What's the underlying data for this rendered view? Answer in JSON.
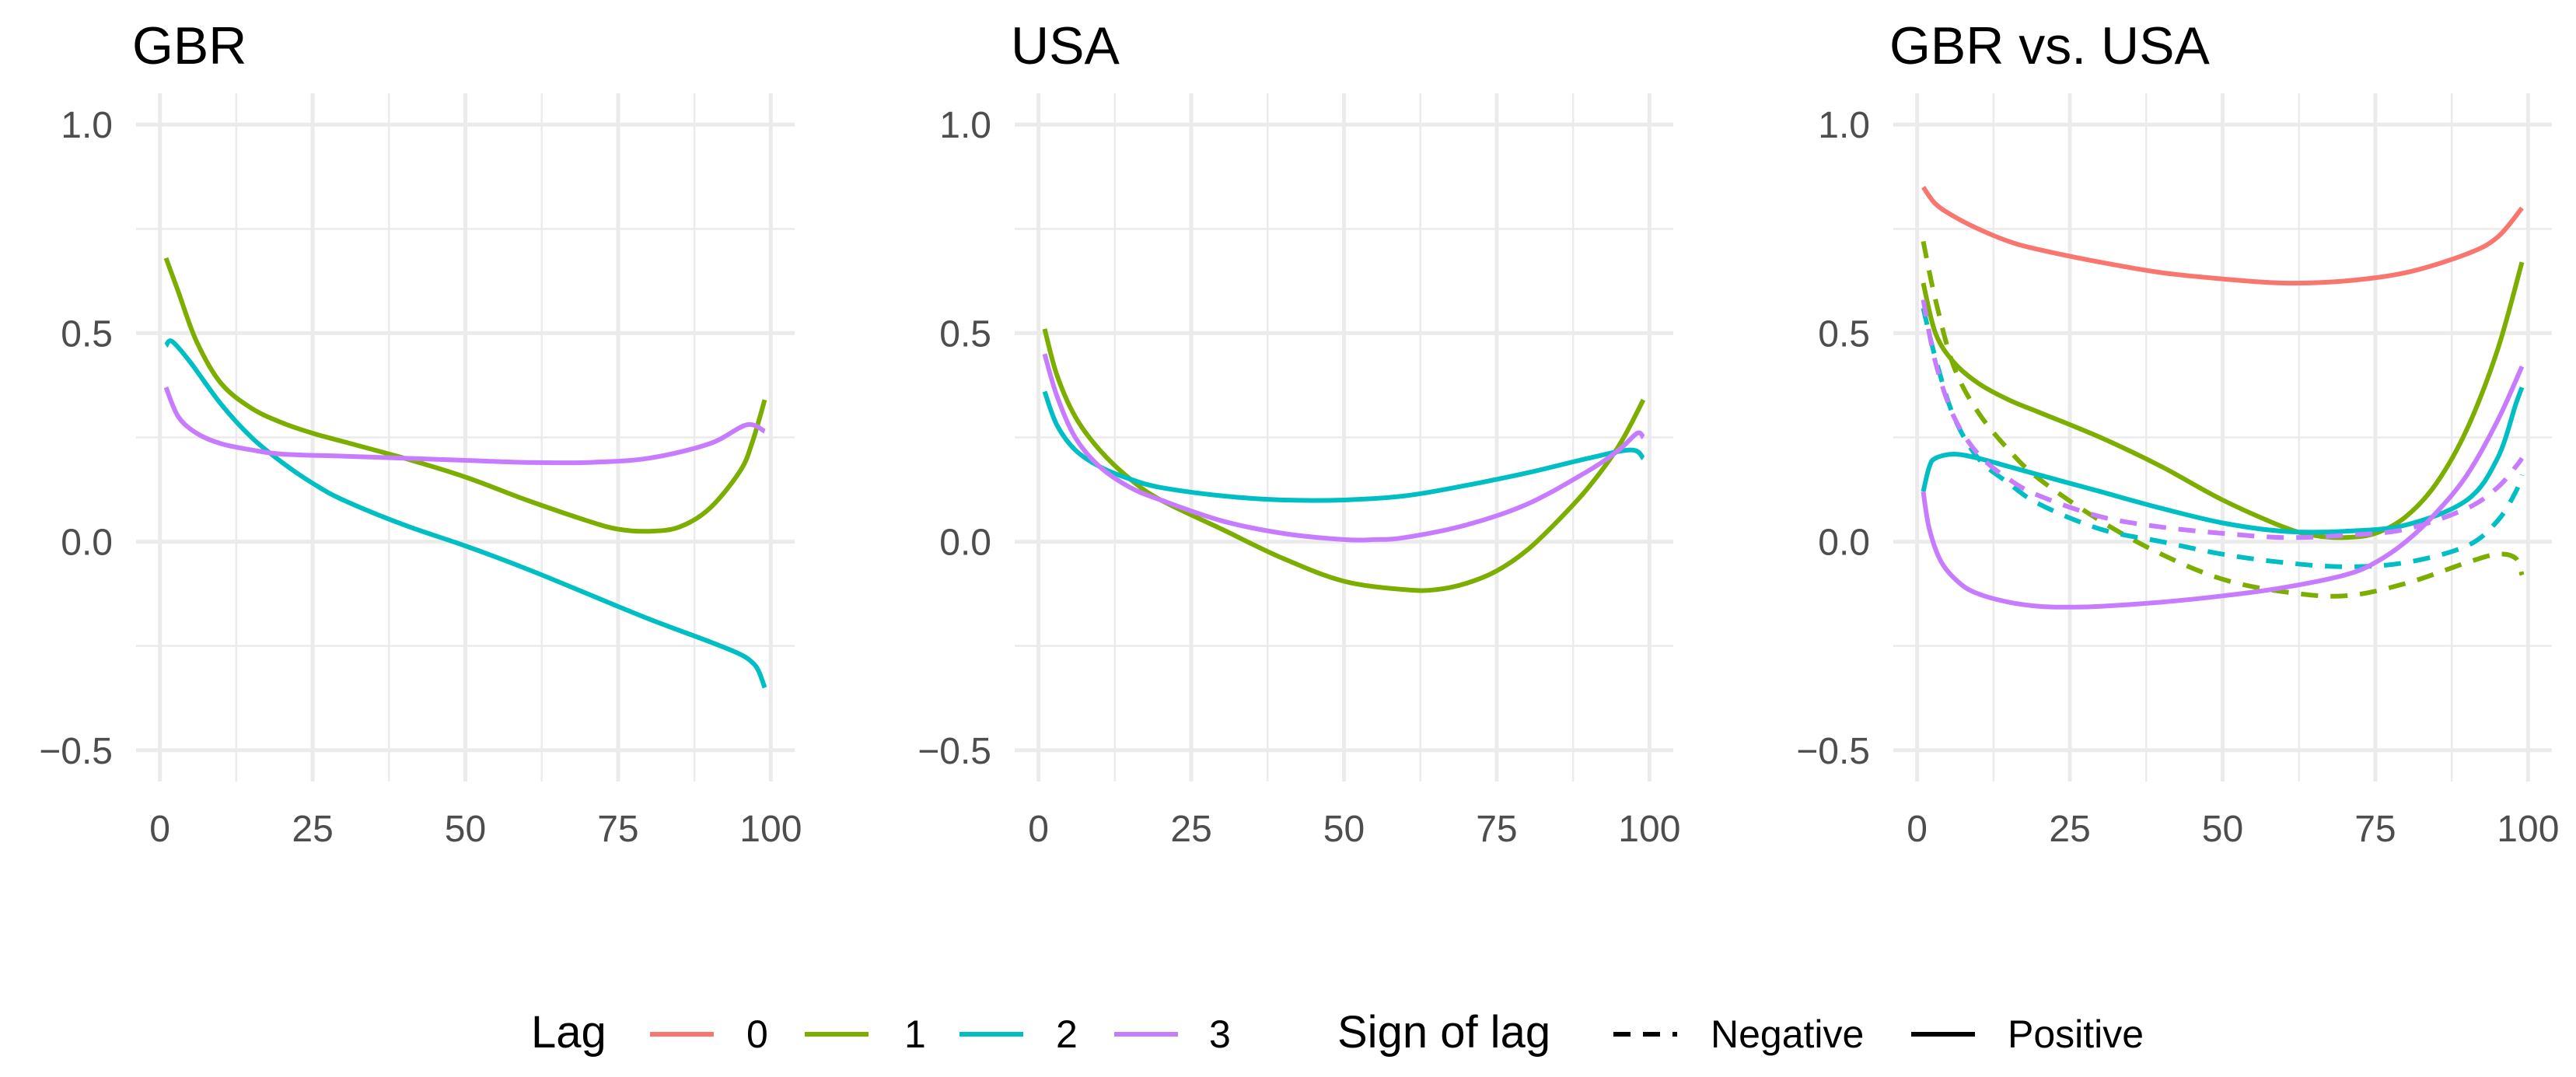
{
  "colors": {
    "0": "#F8766D",
    "1": "#7CAE00",
    "2": "#00BFC4",
    "3": "#C77CFF"
  },
  "chart_data": [
    {
      "type": "line",
      "title": "GBR",
      "xlabel": "",
      "ylabel": "",
      "xlim": [
        1,
        99
      ],
      "ylim": [
        -0.5,
        1.0
      ],
      "xticks": [
        "0",
        "25",
        "50",
        "75",
        "100"
      ],
      "yticks": [
        "−0.5",
        "0.0",
        "0.5",
        "1.0"
      ],
      "series": [
        {
          "lag": "1",
          "sign": "Positive",
          "x": [
            1,
            3,
            6,
            10,
            15,
            20,
            25,
            30,
            40,
            50,
            60,
            70,
            75,
            80,
            85,
            90,
            95,
            97,
            99
          ],
          "y": [
            0.68,
            0.6,
            0.48,
            0.38,
            0.32,
            0.285,
            0.26,
            0.24,
            0.2,
            0.155,
            0.1,
            0.05,
            0.03,
            0.025,
            0.035,
            0.08,
            0.17,
            0.24,
            0.34
          ]
        },
        {
          "lag": "2",
          "sign": "Positive",
          "x": [
            1,
            2,
            5,
            10,
            15,
            20,
            25,
            30,
            40,
            50,
            60,
            70,
            80,
            90,
            95,
            97,
            98,
            99
          ],
          "y": [
            0.47,
            0.48,
            0.43,
            0.33,
            0.25,
            0.19,
            0.14,
            0.1,
            0.04,
            -0.01,
            -0.065,
            -0.125,
            -0.185,
            -0.24,
            -0.27,
            -0.29,
            -0.31,
            -0.35
          ]
        },
        {
          "lag": "3",
          "sign": "Positive",
          "x": [
            1,
            3,
            6,
            10,
            15,
            20,
            30,
            40,
            50,
            60,
            70,
            80,
            90,
            96,
            99
          ],
          "y": [
            0.37,
            0.3,
            0.26,
            0.235,
            0.22,
            0.21,
            0.205,
            0.2,
            0.195,
            0.19,
            0.19,
            0.2,
            0.235,
            0.28,
            0.265
          ]
        }
      ]
    },
    {
      "type": "line",
      "title": "USA",
      "xlabel": "",
      "ylabel": "",
      "xlim": [
        1,
        99
      ],
      "ylim": [
        -0.5,
        1.0
      ],
      "xticks": [
        "0",
        "25",
        "50",
        "75",
        "100"
      ],
      "yticks": [
        "−0.5",
        "0.0",
        "0.5",
        "1.0"
      ],
      "series": [
        {
          "lag": "1",
          "sign": "Positive",
          "x": [
            1,
            3,
            6,
            10,
            15,
            20,
            30,
            40,
            50,
            60,
            65,
            70,
            75,
            80,
            85,
            90,
            95,
            99
          ],
          "y": [
            0.51,
            0.4,
            0.3,
            0.22,
            0.15,
            0.1,
            0.03,
            -0.04,
            -0.095,
            -0.115,
            -0.115,
            -0.1,
            -0.07,
            -0.02,
            0.05,
            0.13,
            0.23,
            0.34
          ]
        },
        {
          "lag": "2",
          "sign": "Positive",
          "x": [
            1,
            3,
            6,
            10,
            15,
            20,
            30,
            40,
            50,
            60,
            70,
            80,
            90,
            97,
            99
          ],
          "y": [
            0.36,
            0.28,
            0.22,
            0.18,
            0.15,
            0.13,
            0.11,
            0.1,
            0.1,
            0.11,
            0.135,
            0.165,
            0.2,
            0.22,
            0.2
          ]
        },
        {
          "lag": "3",
          "sign": "Positive",
          "x": [
            1,
            3,
            6,
            10,
            15,
            20,
            30,
            40,
            50,
            55,
            60,
            70,
            80,
            90,
            95,
            98,
            99
          ],
          "y": [
            0.45,
            0.35,
            0.25,
            0.18,
            0.13,
            0.1,
            0.05,
            0.02,
            0.005,
            0.005,
            0.01,
            0.04,
            0.09,
            0.17,
            0.22,
            0.26,
            0.25
          ]
        }
      ]
    },
    {
      "type": "line",
      "title": "GBR vs. USA",
      "xlabel": "",
      "ylabel": "",
      "xlim": [
        1,
        99
      ],
      "ylim": [
        -0.5,
        1.0
      ],
      "xticks": [
        "0",
        "25",
        "50",
        "75",
        "100"
      ],
      "yticks": [
        "−0.5",
        "0.0",
        "0.5",
        "1.0"
      ],
      "series": [
        {
          "lag": "0",
          "sign": "Positive",
          "x": [
            1,
            3,
            6,
            10,
            15,
            20,
            30,
            40,
            50,
            60,
            70,
            80,
            90,
            95,
            99
          ],
          "y": [
            0.85,
            0.81,
            0.78,
            0.75,
            0.72,
            0.7,
            0.67,
            0.645,
            0.63,
            0.62,
            0.625,
            0.645,
            0.69,
            0.73,
            0.8
          ]
        },
        {
          "lag": "1",
          "sign": "Positive",
          "x": [
            1,
            3,
            6,
            10,
            15,
            20,
            30,
            40,
            50,
            60,
            65,
            70,
            75,
            80,
            85,
            90,
            95,
            99
          ],
          "y": [
            0.62,
            0.5,
            0.43,
            0.38,
            0.34,
            0.31,
            0.25,
            0.18,
            0.1,
            0.035,
            0.015,
            0.01,
            0.02,
            0.06,
            0.14,
            0.27,
            0.46,
            0.67
          ]
        },
        {
          "lag": "1",
          "sign": "Negative",
          "x": [
            1,
            3,
            6,
            10,
            15,
            20,
            30,
            40,
            50,
            60,
            70,
            80,
            90,
            95,
            98,
            99
          ],
          "y": [
            0.72,
            0.58,
            0.42,
            0.31,
            0.22,
            0.15,
            0.05,
            -0.03,
            -0.09,
            -0.12,
            -0.13,
            -0.1,
            -0.05,
            -0.03,
            -0.04,
            -0.08
          ]
        },
        {
          "lag": "2",
          "sign": "Positive",
          "x": [
            1,
            2,
            3,
            6,
            10,
            15,
            20,
            30,
            40,
            50,
            60,
            70,
            80,
            90,
            95,
            98,
            99
          ],
          "y": [
            0.12,
            0.18,
            0.2,
            0.21,
            0.2,
            0.18,
            0.16,
            0.12,
            0.08,
            0.045,
            0.025,
            0.025,
            0.04,
            0.1,
            0.2,
            0.33,
            0.37
          ]
        },
        {
          "lag": "2",
          "sign": "Negative",
          "x": [
            1,
            3,
            6,
            10,
            15,
            20,
            30,
            40,
            50,
            60,
            70,
            80,
            90,
            95,
            98,
            99
          ],
          "y": [
            0.56,
            0.44,
            0.3,
            0.2,
            0.14,
            0.09,
            0.03,
            0,
            -0.03,
            -0.05,
            -0.06,
            -0.05,
            -0.01,
            0.05,
            0.12,
            0.16
          ]
        },
        {
          "lag": "3",
          "sign": "Positive",
          "x": [
            1,
            2,
            4,
            7,
            10,
            15,
            20,
            25,
            30,
            40,
            50,
            60,
            70,
            75,
            80,
            85,
            90,
            95,
            99
          ],
          "y": [
            0.12,
            0.03,
            -0.05,
            -0.1,
            -0.125,
            -0.145,
            -0.155,
            -0.157,
            -0.155,
            -0.145,
            -0.13,
            -0.11,
            -0.08,
            -0.05,
            0,
            0.07,
            0.16,
            0.29,
            0.42
          ]
        },
        {
          "lag": "3",
          "sign": "Negative",
          "x": [
            1,
            3,
            6,
            10,
            15,
            20,
            30,
            40,
            50,
            60,
            70,
            80,
            90,
            95,
            98,
            99
          ],
          "y": [
            0.58,
            0.43,
            0.3,
            0.21,
            0.15,
            0.11,
            0.06,
            0.035,
            0.02,
            0.01,
            0.015,
            0.03,
            0.08,
            0.13,
            0.18,
            0.2
          ]
        }
      ]
    }
  ],
  "legend": {
    "lag_title": "Lag",
    "lag_entries": [
      "0",
      "1",
      "2",
      "3"
    ],
    "sign_title": "Sign of lag",
    "sign_entries": [
      "Negative",
      "Positive"
    ],
    "position": "bottom"
  }
}
